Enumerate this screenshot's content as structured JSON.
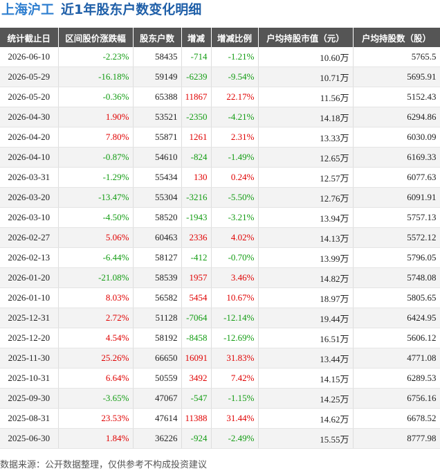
{
  "header": {
    "title": "上海沪工",
    "subtitle": "近1年股东户数变化明细"
  },
  "table": {
    "columns": [
      "统计截止日",
      "区间股价涨跌幅",
      "股东户数",
      "增减",
      "增减比例",
      "户均持股市值（元）",
      "户均持股数（股）"
    ],
    "rows": [
      [
        "2026-06-10",
        "-2.23%",
        "58435",
        "-714",
        "-1.21%",
        "10.60万",
        "5765.5"
      ],
      [
        "2026-05-29",
        "-16.18%",
        "59149",
        "-6239",
        "-9.54%",
        "10.71万",
        "5695.91"
      ],
      [
        "2026-05-20",
        "-0.36%",
        "65388",
        "11867",
        "22.17%",
        "11.56万",
        "5152.43"
      ],
      [
        "2026-04-30",
        "1.90%",
        "53521",
        "-2350",
        "-4.21%",
        "14.18万",
        "6294.86"
      ],
      [
        "2026-04-20",
        "7.80%",
        "55871",
        "1261",
        "2.31%",
        "13.33万",
        "6030.09"
      ],
      [
        "2026-04-10",
        "-0.87%",
        "54610",
        "-824",
        "-1.49%",
        "12.65万",
        "6169.33"
      ],
      [
        "2026-03-31",
        "-1.29%",
        "55434",
        "130",
        "0.24%",
        "12.57万",
        "6077.63"
      ],
      [
        "2026-03-20",
        "-13.47%",
        "55304",
        "-3216",
        "-5.50%",
        "12.76万",
        "6091.91"
      ],
      [
        "2026-03-10",
        "-4.50%",
        "58520",
        "-1943",
        "-3.21%",
        "13.94万",
        "5757.13"
      ],
      [
        "2026-02-27",
        "5.06%",
        "60463",
        "2336",
        "4.02%",
        "14.13万",
        "5572.12"
      ],
      [
        "2026-02-13",
        "-6.44%",
        "58127",
        "-412",
        "-0.70%",
        "13.99万",
        "5796.05"
      ],
      [
        "2026-01-20",
        "-21.08%",
        "58539",
        "1957",
        "3.46%",
        "14.82万",
        "5748.08"
      ],
      [
        "2026-01-10",
        "8.03%",
        "56582",
        "5454",
        "10.67%",
        "18.97万",
        "5805.65"
      ],
      [
        "2025-12-31",
        "2.72%",
        "51128",
        "-7064",
        "-12.14%",
        "19.44万",
        "6424.95"
      ],
      [
        "2025-12-20",
        "4.54%",
        "58192",
        "-8458",
        "-12.69%",
        "16.51万",
        "5606.12"
      ],
      [
        "2025-11-30",
        "25.26%",
        "66650",
        "16091",
        "31.83%",
        "13.44万",
        "4771.08"
      ],
      [
        "2025-10-31",
        "6.64%",
        "50559",
        "3492",
        "7.42%",
        "14.15万",
        "6289.53"
      ],
      [
        "2025-09-30",
        "-3.65%",
        "47067",
        "-547",
        "-1.15%",
        "14.25万",
        "6756.16"
      ],
      [
        "2025-08-31",
        "23.53%",
        "47614",
        "11388",
        "31.44%",
        "14.62万",
        "6678.52"
      ],
      [
        "2025-06-30",
        "1.84%",
        "36226",
        "-924",
        "-2.49%",
        "15.55万",
        "8777.98"
      ]
    ]
  },
  "footer": "数据来源：公开数据整理，仅供参考不构成投资建议"
}
